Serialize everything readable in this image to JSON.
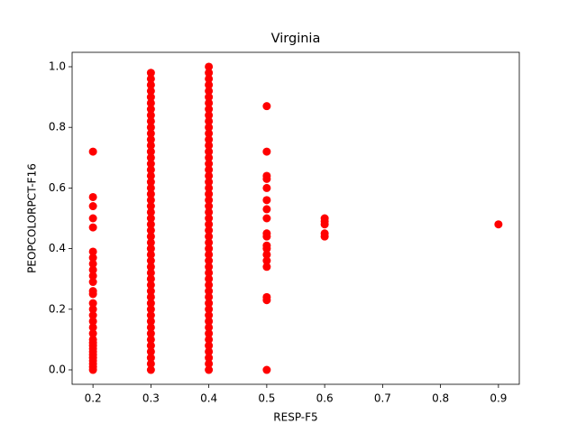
{
  "chart_data": {
    "type": "scatter",
    "title": "Virginia",
    "xlabel": "RESP-F5",
    "ylabel": "PEOPCOLORPCT-F16",
    "color": "#ff0000",
    "xlim": [
      0.164,
      0.936
    ],
    "ylim": [
      -0.0476,
      1.0476
    ],
    "xticks": [
      0.2,
      0.3,
      0.4,
      0.5,
      0.6,
      0.7,
      0.8,
      0.9
    ],
    "yticks": [
      {
        "value": 0,
        "label": "0.0"
      },
      0.2,
      0.4,
      0.6,
      0.8,
      {
        "value": 1,
        "label": "1.0"
      }
    ],
    "series": [
      {
        "x": 0.2,
        "values": [
          0,
          0.01,
          0.02,
          0.03,
          0.04,
          0.05,
          0.06,
          0.07,
          0.08,
          0.09,
          0.1,
          0.12,
          0.14,
          0.16,
          0.18,
          0.2,
          0.22,
          0.25,
          0.26,
          0.29,
          0.31,
          0.33,
          0.35,
          0.37,
          0.39,
          0.47,
          0.5,
          0.54,
          0.57,
          0.72
        ]
      },
      {
        "x": 0.3,
        "values": [
          0,
          0.02,
          0.04,
          0.06,
          0.08,
          0.1,
          0.12,
          0.14,
          0.16,
          0.18,
          0.2,
          0.22,
          0.24,
          0.26,
          0.28,
          0.3,
          0.32,
          0.34,
          0.36,
          0.38,
          0.4,
          0.42,
          0.44,
          0.46,
          0.48,
          0.5,
          0.52,
          0.54,
          0.56,
          0.58,
          0.6,
          0.62,
          0.64,
          0.66,
          0.68,
          0.7,
          0.72,
          0.74,
          0.76,
          0.78,
          0.8,
          0.82,
          0.84,
          0.86,
          0.88,
          0.9,
          0.92,
          0.94,
          0.96,
          0.98
        ]
      },
      {
        "x": 0.4,
        "values": [
          0,
          0.02,
          0.04,
          0.06,
          0.08,
          0.1,
          0.12,
          0.14,
          0.16,
          0.18,
          0.2,
          0.22,
          0.24,
          0.26,
          0.28,
          0.3,
          0.32,
          0.34,
          0.36,
          0.38,
          0.4,
          0.42,
          0.44,
          0.46,
          0.48,
          0.5,
          0.52,
          0.54,
          0.56,
          0.58,
          0.6,
          0.62,
          0.64,
          0.66,
          0.68,
          0.7,
          0.72,
          0.74,
          0.76,
          0.78,
          0.8,
          0.82,
          0.84,
          0.86,
          0.88,
          0.9,
          0.92,
          0.94,
          0.96,
          0.98,
          1
        ]
      },
      {
        "x": 0.5,
        "values": [
          0,
          0.23,
          0.24,
          0.34,
          0.36,
          0.38,
          0.4,
          0.41,
          0.44,
          0.45,
          0.5,
          0.53,
          0.56,
          0.6,
          0.63,
          0.64,
          0.72,
          0.87
        ]
      },
      {
        "x": 0.6,
        "values": [
          0.44,
          0.45,
          0.48,
          0.49,
          0.5
        ]
      },
      {
        "x": 0.9,
        "values": [
          0.48
        ]
      }
    ]
  }
}
